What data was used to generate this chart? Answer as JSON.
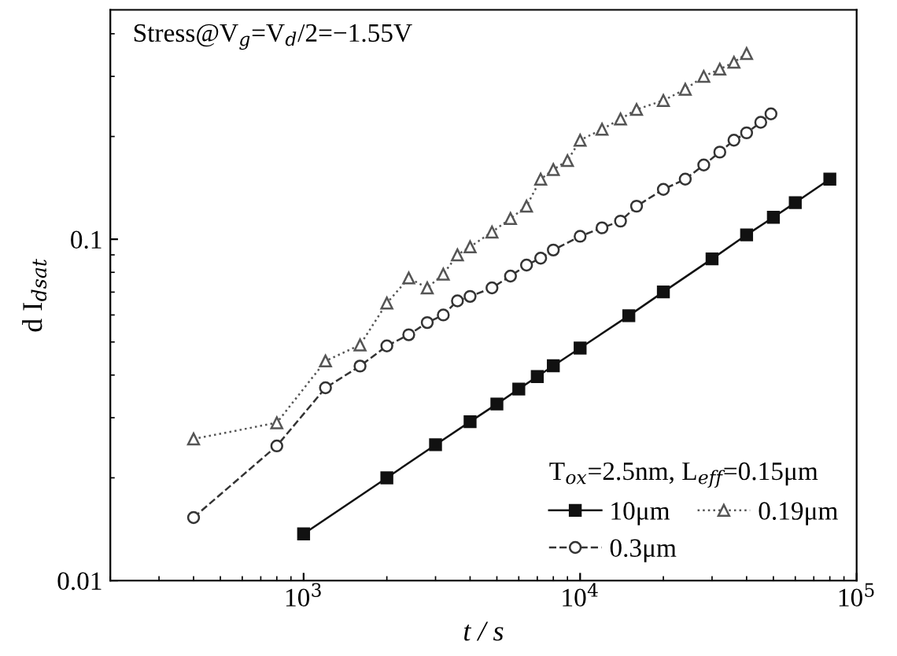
{
  "chart_data": {
    "type": "line",
    "xlabel": "t / s",
    "ylabel": "d I$_{dsat}$",
    "log": "xy",
    "xlim": [
      200,
      100000
    ],
    "ylim": [
      0.01,
      0.47
    ],
    "xticks": [
      {
        "value": 1000,
        "label": "10$^{3}$"
      },
      {
        "value": 10000,
        "label": "10$^{4}$"
      },
      {
        "value": 100000,
        "label": "10$^{5}$"
      }
    ],
    "yticks": [
      0.01,
      0.1
    ],
    "grid": false,
    "legend": "bottom right",
    "legend_title": "T$_{ox}$=2.5nm, L$_{eff}$=0.15μm",
    "annotations": [
      "Stress@V$_{g}$=V$_{d}$/2=−1.55V"
    ],
    "series": [
      {
        "name": "10μm",
        "color": "#111111",
        "marker": "square",
        "line_style": "solid",
        "x": [
          1000,
          2000,
          3000,
          4000,
          5000,
          6000,
          7000,
          8000,
          10000,
          15000,
          20000,
          30000,
          40000,
          50000,
          60000,
          80000
        ],
        "values": [
          0.0137,
          0.02,
          0.025,
          0.0292,
          0.0329,
          0.0364,
          0.0396,
          0.0426,
          0.048,
          0.0597,
          0.0701,
          0.0876,
          0.103,
          0.116,
          0.128,
          0.15
        ]
      },
      {
        "name": "0.3μm",
        "color": "#333333",
        "marker": "circle",
        "line_style": "dashed",
        "x": [
          400,
          800,
          1200,
          1600,
          2000,
          2400,
          2800,
          3200,
          3600,
          4000,
          4800,
          5600,
          6400,
          7200,
          8000,
          10000,
          12000,
          14000,
          16000,
          20000,
          24000,
          28000,
          32000,
          36000,
          40000,
          45000,
          49000
        ],
        "values": [
          0.0153,
          0.0248,
          0.0367,
          0.0425,
          0.0487,
          0.0525,
          0.057,
          0.06,
          0.066,
          0.068,
          0.072,
          0.078,
          0.084,
          0.088,
          0.093,
          0.102,
          0.108,
          0.113,
          0.125,
          0.14,
          0.15,
          0.165,
          0.18,
          0.195,
          0.205,
          0.22,
          0.233
        ]
      },
      {
        "name": "0.19μm",
        "color": "#555555",
        "marker": "triangle",
        "line_style": "dotted",
        "x": [
          400,
          800,
          1200,
          1600,
          2000,
          2400,
          2800,
          3200,
          3600,
          4000,
          4800,
          5600,
          6400,
          7200,
          8000,
          9000,
          10000,
          12000,
          14000,
          16000,
          20000,
          24000,
          28000,
          32000,
          36000,
          40000
        ],
        "values": [
          0.026,
          0.029,
          0.044,
          0.049,
          0.065,
          0.077,
          0.072,
          0.079,
          0.09,
          0.095,
          0.105,
          0.115,
          0.125,
          0.15,
          0.16,
          0.17,
          0.195,
          0.21,
          0.225,
          0.24,
          0.255,
          0.275,
          0.3,
          0.315,
          0.33,
          0.35
        ]
      }
    ]
  }
}
